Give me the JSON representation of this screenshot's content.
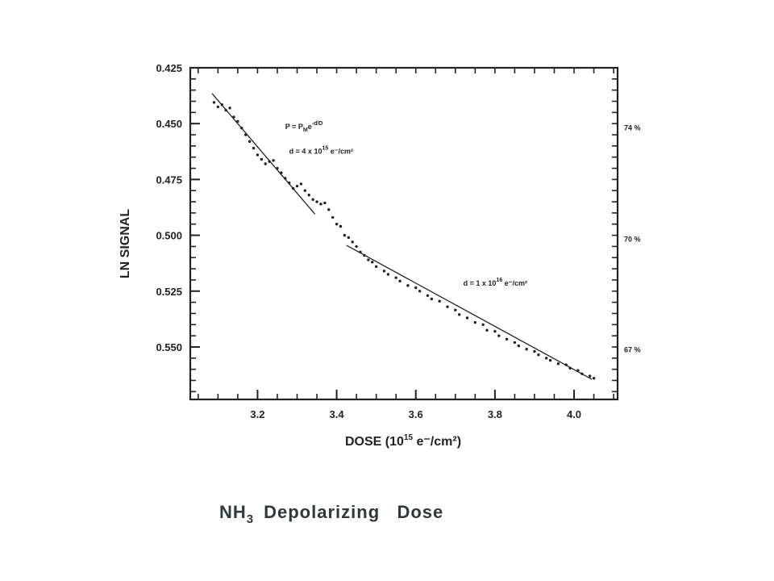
{
  "caption": {
    "formula": "NH",
    "sub": "3",
    "text": "Depolarizing   Dose"
  },
  "chart_data": {
    "type": "scatter",
    "xlabel": {
      "text": "DOSE (10",
      "sup": "15",
      "rest": " e⁻/cm²)"
    },
    "ylabel": "LN SIGNAL",
    "xlim": [
      3.03,
      4.11
    ],
    "ylim": [
      0.425,
      0.5735
    ],
    "y_inverted": true,
    "x_ticks": [
      {
        "value": 3.2,
        "label": "3.2"
      },
      {
        "value": 3.4,
        "label": "3.4"
      },
      {
        "value": 3.6,
        "label": "3.6"
      },
      {
        "value": 3.8,
        "label": "3.8"
      },
      {
        "value": 4.0,
        "label": "4.0"
      }
    ],
    "y_ticks": [
      {
        "value": 0.425,
        "label": "0.425"
      },
      {
        "value": 0.45,
        "label": "0.450"
      },
      {
        "value": 0.475,
        "label": "0.475"
      },
      {
        "value": 0.5,
        "label": "0.500"
      },
      {
        "value": 0.525,
        "label": "0.525"
      },
      {
        "value": 0.55,
        "label": "0.550"
      }
    ],
    "right_axis_labels": [
      {
        "value": 0.4515,
        "label": "74 %"
      },
      {
        "value": 0.5015,
        "label": "70 %"
      },
      {
        "value": 0.551,
        "label": "67 %"
      }
    ],
    "annotations": [
      {
        "id": "formula",
        "text": "P = P",
        "sub": "M",
        "tail": "e",
        "sup": "-d/D",
        "x": 3.27,
        "y": 0.4525
      },
      {
        "id": "fit1",
        "text": "d = 4 x 10",
        "sup": "15",
        "tail": " e⁻/cm²",
        "x": 3.28,
        "y": 0.4635
      },
      {
        "id": "fit2",
        "text": "d = 1 x 10",
        "sup": "16",
        "tail": " e⁻/cm²",
        "x": 3.72,
        "y": 0.5225
      }
    ],
    "fit_lines": [
      {
        "name": "",
        "points": [
          [
            3.085,
            0.4365
          ],
          [
            3.345,
            0.4905
          ]
        ]
      },
      {
        "name": "",
        "points": [
          [
            3.425,
            0.5045
          ],
          [
            4.045,
            0.5645
          ]
        ]
      }
    ],
    "series": [
      {
        "name": "",
        "points": [
          [
            3.09,
            0.4405
          ],
          [
            3.1,
            0.4425
          ],
          [
            3.11,
            0.4415
          ],
          [
            3.12,
            0.444
          ],
          [
            3.13,
            0.443
          ],
          [
            3.14,
            0.447
          ],
          [
            3.15,
            0.449
          ],
          [
            3.16,
            0.452
          ],
          [
            3.17,
            0.455
          ],
          [
            3.18,
            0.458
          ],
          [
            3.19,
            0.461
          ],
          [
            3.2,
            0.464
          ],
          [
            3.21,
            0.466
          ],
          [
            3.22,
            0.468
          ],
          [
            3.23,
            0.467
          ],
          [
            3.24,
            0.4665
          ],
          [
            3.25,
            0.47
          ],
          [
            3.26,
            0.472
          ],
          [
            3.27,
            0.4745
          ],
          [
            3.28,
            0.4765
          ],
          [
            3.29,
            0.479
          ],
          [
            3.3,
            0.478
          ],
          [
            3.31,
            0.477
          ],
          [
            3.32,
            0.48
          ],
          [
            3.33,
            0.482
          ],
          [
            3.34,
            0.484
          ],
          [
            3.35,
            0.485
          ],
          [
            3.36,
            0.486
          ],
          [
            3.37,
            0.4855
          ],
          [
            3.38,
            0.4885
          ],
          [
            3.39,
            0.492
          ],
          [
            3.4,
            0.495
          ],
          [
            3.41,
            0.496
          ],
          [
            3.42,
            0.5
          ],
          [
            3.43,
            0.501
          ],
          [
            3.44,
            0.503
          ],
          [
            3.45,
            0.505
          ],
          [
            3.46,
            0.5075
          ],
          [
            3.47,
            0.509
          ],
          [
            3.48,
            0.511
          ],
          [
            3.49,
            0.512
          ],
          [
            3.5,
            0.514
          ],
          [
            3.52,
            0.516
          ],
          [
            3.53,
            0.5175
          ],
          [
            3.55,
            0.519
          ],
          [
            3.56,
            0.5205
          ],
          [
            3.58,
            0.5225
          ],
          [
            3.6,
            0.5235
          ],
          [
            3.61,
            0.525
          ],
          [
            3.63,
            0.527
          ],
          [
            3.64,
            0.5285
          ],
          [
            3.66,
            0.5295
          ],
          [
            3.68,
            0.532
          ],
          [
            3.7,
            0.5335
          ],
          [
            3.71,
            0.5355
          ],
          [
            3.73,
            0.537
          ],
          [
            3.75,
            0.539
          ],
          [
            3.77,
            0.54
          ],
          [
            3.78,
            0.5425
          ],
          [
            3.8,
            0.543
          ],
          [
            3.81,
            0.545
          ],
          [
            3.83,
            0.5465
          ],
          [
            3.85,
            0.548
          ],
          [
            3.86,
            0.5495
          ],
          [
            3.88,
            0.551
          ],
          [
            3.9,
            0.552
          ],
          [
            3.91,
            0.5535
          ],
          [
            3.93,
            0.555
          ],
          [
            3.94,
            0.556
          ],
          [
            3.96,
            0.5575
          ],
          [
            3.98,
            0.558
          ],
          [
            3.99,
            0.5595
          ],
          [
            4.01,
            0.5605
          ],
          [
            4.02,
            0.562
          ],
          [
            4.04,
            0.563
          ],
          [
            4.05,
            0.564
          ]
        ]
      }
    ]
  }
}
